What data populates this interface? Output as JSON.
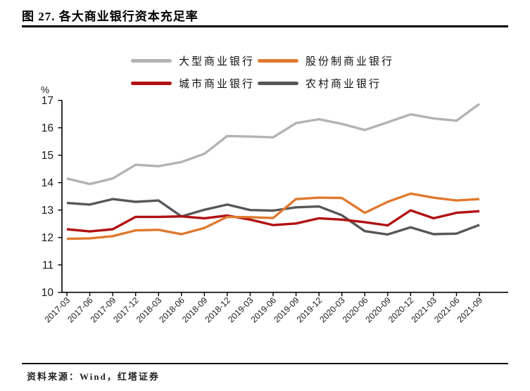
{
  "header": {
    "title": "图 27. 各大商业银行资本充足率"
  },
  "source": {
    "label": "资料来源：Wind，红塔证券"
  },
  "chart_data": {
    "type": "line",
    "title": "图 27. 各大商业银行资本充足率",
    "ylabel": "%",
    "xlabel": "",
    "ylim": [
      10,
      17
    ],
    "y_ticks": [
      17,
      16,
      15,
      14,
      13,
      12,
      11,
      10
    ],
    "grid": false,
    "legend_position": "top",
    "categories": [
      "2017-03",
      "2017-06",
      "2017-09",
      "2017-12",
      "2018-03",
      "2018-06",
      "2018-09",
      "2018-12",
      "2019-03",
      "2019-06",
      "2019-09",
      "2019-12",
      "2020-03",
      "2020-06",
      "2020-09",
      "2020-12",
      "2021-03",
      "2021-06",
      "2021-09"
    ],
    "series": [
      {
        "name": "大型商业银行",
        "color": "#b3b3b3",
        "values": [
          14.15,
          13.95,
          14.15,
          14.65,
          14.6,
          14.75,
          15.05,
          15.7,
          15.68,
          15.65,
          16.17,
          16.31,
          16.14,
          15.92,
          16.2,
          16.49,
          16.34,
          16.26,
          16.87
        ]
      },
      {
        "name": "股份制商业银行",
        "color": "#e0792f",
        "values": [
          11.95,
          11.97,
          12.05,
          12.26,
          12.28,
          12.12,
          12.35,
          12.75,
          12.74,
          12.71,
          13.4,
          13.45,
          13.44,
          12.9,
          13.3,
          13.6,
          13.45,
          13.35,
          13.4
        ]
      },
      {
        "name": "城市商业银行",
        "color": "#b01113",
        "values": [
          12.3,
          12.22,
          12.3,
          12.75,
          12.75,
          12.77,
          12.7,
          12.8,
          12.65,
          12.45,
          12.51,
          12.7,
          12.65,
          12.56,
          12.44,
          12.99,
          12.7,
          12.9,
          12.96
        ]
      },
      {
        "name": "农村商业银行",
        "color": "#575757",
        "values": [
          13.26,
          13.2,
          13.4,
          13.3,
          13.35,
          12.77,
          13.01,
          13.2,
          13.0,
          12.98,
          13.1,
          13.13,
          12.81,
          12.23,
          12.11,
          12.37,
          12.12,
          12.14,
          12.46
        ]
      }
    ]
  }
}
